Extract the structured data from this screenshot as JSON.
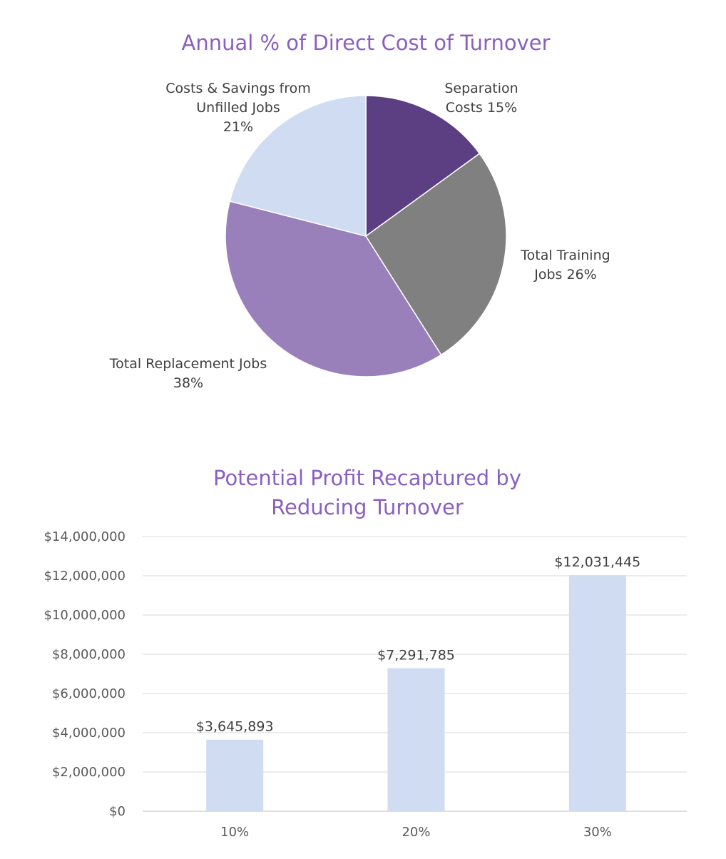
{
  "chart_data": [
    {
      "type": "pie",
      "title": "Annual % of Direct Cost of Turnover",
      "slices": [
        {
          "label_lines": [
            "Separation",
            "Costs 15%"
          ],
          "name": "Separation Costs",
          "value": 15,
          "color": "#5B3F82"
        },
        {
          "label_lines": [
            "Total Training",
            "Jobs 26%"
          ],
          "name": "Total Training Jobs",
          "value": 26,
          "color": "#808080"
        },
        {
          "label_lines": [
            "Total Replacement Jobs",
            "38%"
          ],
          "name": "Total Replacement Jobs",
          "value": 38,
          "color": "#9A80BA"
        },
        {
          "label_lines": [
            "Costs & Savings from",
            "Unfilled Jobs",
            "21%"
          ],
          "name": "Costs & Savings from Unfilled Jobs",
          "value": 21,
          "color": "#D0DCF2"
        }
      ]
    },
    {
      "type": "bar",
      "title_lines": [
        "Potential Profit Recaptured by",
        "Reducing Turnover"
      ],
      "categories": [
        "10%",
        "20%",
        "30%"
      ],
      "values": [
        3645893,
        7291785,
        12031445
      ],
      "data_labels": [
        "$3,645,893",
        "$7,291,785",
        "$12,031,445"
      ],
      "ylim": [
        0,
        14000000
      ],
      "yticks": [
        0,
        2000000,
        4000000,
        6000000,
        8000000,
        10000000,
        12000000,
        14000000
      ],
      "ytick_labels": [
        "$0",
        "$2,000,000",
        "$4,000,000",
        "$6,000,000",
        "$8,000,000",
        "$10,000,000",
        "$12,000,000",
        "$14,000,000"
      ],
      "grid": true,
      "bar_color": "#D0DCF2",
      "xlabel": "",
      "ylabel": ""
    }
  ]
}
